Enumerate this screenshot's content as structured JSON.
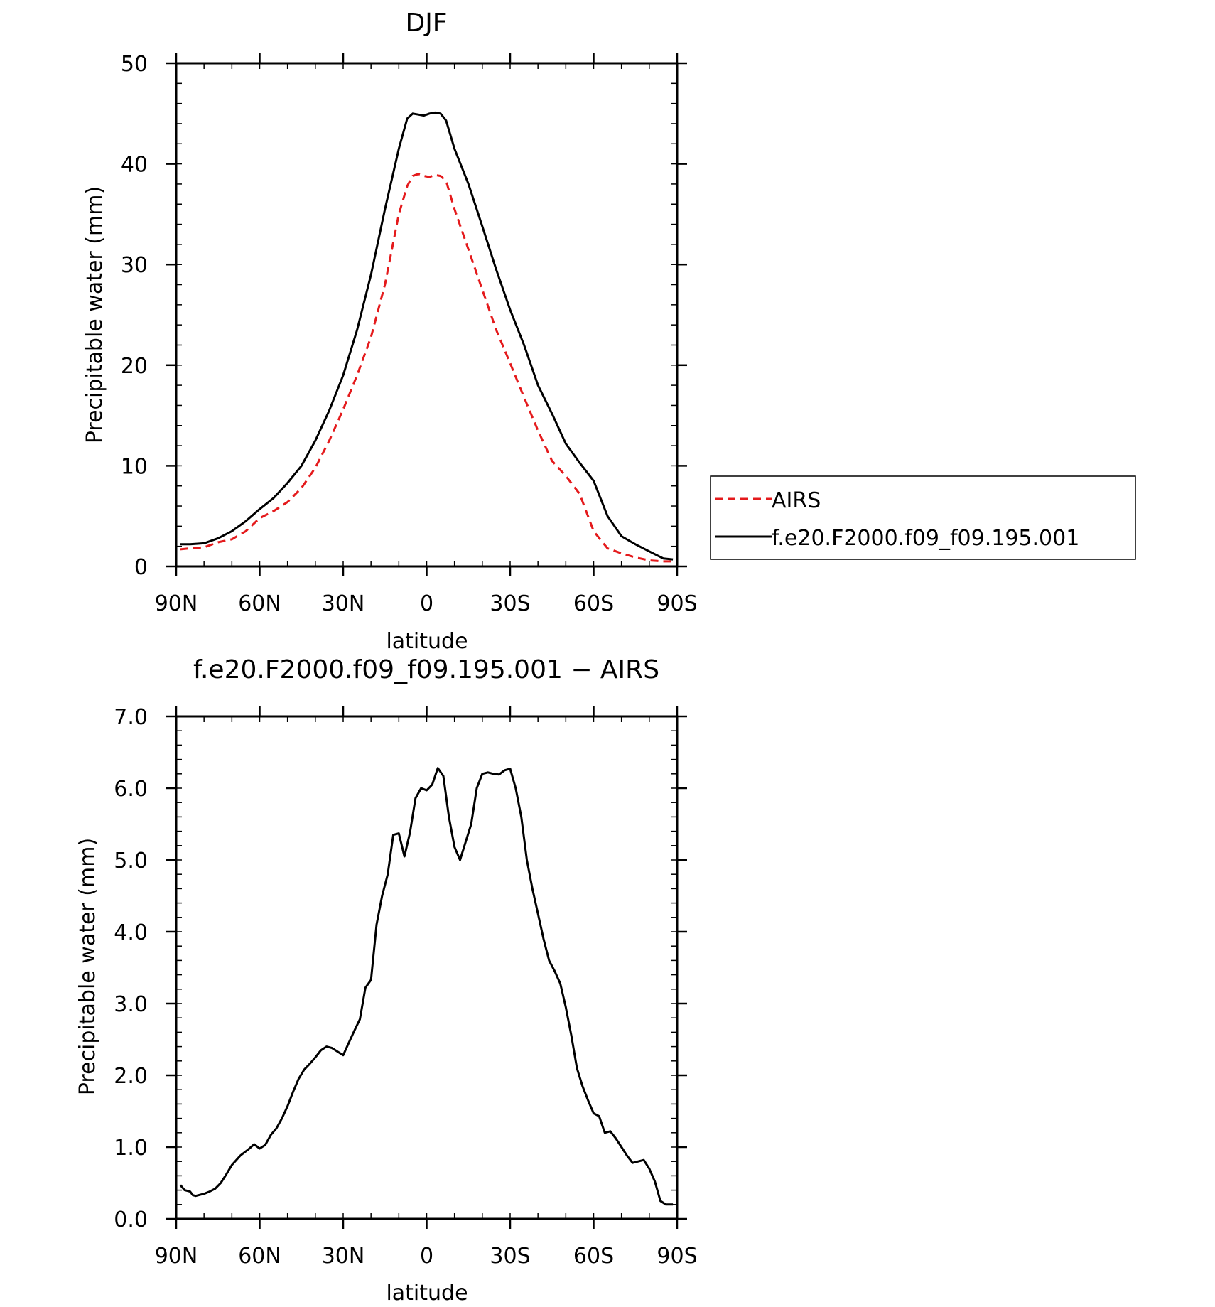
{
  "chart_data": [
    {
      "type": "line",
      "title": "DJF",
      "xlabel": "latitude",
      "ylabel": "Precipitable water (mm)",
      "xlim": [
        -90,
        90
      ],
      "ylim": [
        0,
        50
      ],
      "x_tick_values": [
        -90,
        -60,
        -30,
        0,
        30,
        60,
        90
      ],
      "x_tick_labels": [
        "90N",
        "60N",
        "30N",
        "0",
        "30S",
        "60S",
        "90S"
      ],
      "y_tick_values": [
        0,
        10,
        20,
        30,
        40,
        50
      ],
      "y_tick_labels": [
        "0",
        "10",
        "20",
        "30",
        "40",
        "50"
      ],
      "legend_position": "right",
      "series": [
        {
          "name": "AIRS",
          "color": "#e41a1c",
          "dash": "dashed",
          "x": [
            -88.5,
            -85,
            -80,
            -75,
            -70,
            -65,
            -60,
            -55,
            -50,
            -45,
            -40,
            -35,
            -30,
            -25,
            -20,
            -15,
            -10,
            -7,
            -5,
            -3,
            -1,
            1,
            3,
            5,
            7,
            10,
            15,
            20,
            25,
            30,
            35,
            40,
            45,
            50,
            55,
            60,
            65,
            70,
            75,
            80,
            85,
            88.5
          ],
          "y": [
            1.7,
            1.8,
            1.9,
            2.4,
            2.7,
            3.5,
            4.8,
            5.5,
            6.4,
            7.8,
            9.8,
            12.5,
            15.6,
            19.0,
            22.8,
            28.0,
            35.0,
            37.8,
            38.8,
            39.0,
            38.8,
            38.7,
            38.9,
            38.8,
            38.3,
            35.5,
            31.5,
            27.5,
            23.5,
            20.2,
            16.8,
            13.5,
            10.5,
            9.0,
            7.2,
            3.5,
            1.8,
            1.3,
            0.9,
            0.6,
            0.5,
            0.5
          ]
        },
        {
          "name": "f.e20.F2000.f09_f09.195.001",
          "color": "#000000",
          "dash": "solid",
          "x": [
            -88.5,
            -85,
            -80,
            -75,
            -70,
            -65,
            -60,
            -55,
            -50,
            -45,
            -40,
            -35,
            -30,
            -25,
            -20,
            -15,
            -10,
            -7,
            -5,
            -3,
            -1,
            1,
            3,
            5,
            7,
            10,
            15,
            20,
            25,
            30,
            35,
            40,
            45,
            50,
            55,
            60,
            65,
            70,
            75,
            80,
            85,
            88.5
          ],
          "y": [
            2.2,
            2.2,
            2.3,
            2.8,
            3.5,
            4.5,
            5.7,
            6.8,
            8.3,
            10.0,
            12.5,
            15.5,
            19.0,
            23.5,
            29.0,
            35.5,
            41.5,
            44.5,
            45.0,
            44.9,
            44.8,
            45.0,
            45.1,
            45.0,
            44.3,
            41.5,
            38.0,
            33.8,
            29.5,
            25.5,
            22.0,
            18.0,
            15.2,
            12.2,
            10.3,
            8.5,
            5.0,
            3.0,
            2.2,
            1.5,
            0.8,
            0.7
          ]
        }
      ]
    },
    {
      "type": "line",
      "title": "f.e20.F2000.f09_f09.195.001 − AIRS",
      "xlabel": "latitude",
      "ylabel": "Precipitable water (mm)",
      "xlim": [
        -90,
        90
      ],
      "ylim": [
        0,
        7
      ],
      "x_tick_values": [
        -90,
        -60,
        -30,
        0,
        30,
        60,
        90
      ],
      "x_tick_labels": [
        "90N",
        "60N",
        "30N",
        "0",
        "30S",
        "60S",
        "90S"
      ],
      "y_tick_values": [
        0,
        1,
        2,
        3,
        4,
        5,
        6,
        7
      ],
      "y_tick_labels": [
        "0.0",
        "1.0",
        "2.0",
        "3.0",
        "4.0",
        "5.0",
        "6.0",
        "7.0"
      ],
      "series": [
        {
          "color": "#000000",
          "dash": "solid",
          "x": [
            -88.5,
            -87,
            -85,
            -84,
            -83,
            -80,
            -78,
            -76,
            -74,
            -72,
            -70,
            -67,
            -64,
            -62,
            -60,
            -58,
            -56,
            -54,
            -52,
            -50,
            -48,
            -46,
            -44,
            -42,
            -40,
            -38,
            -36,
            -34,
            -32,
            -30,
            -28,
            -26,
            -24,
            -22,
            -20,
            -18,
            -16,
            -14,
            -12,
            -10,
            -8,
            -6,
            -4,
            -2,
            0,
            2,
            4,
            6,
            8,
            10,
            12,
            14,
            16,
            18,
            20,
            22,
            24,
            26,
            28,
            30,
            32,
            34,
            36,
            38,
            40,
            42,
            44,
            46,
            48,
            50,
            52,
            54,
            56,
            58,
            60,
            62,
            64,
            66,
            68,
            70,
            72,
            74,
            76,
            78,
            80,
            82,
            84,
            86,
            88.5
          ],
          "y": [
            0.47,
            0.4,
            0.38,
            0.33,
            0.32,
            0.35,
            0.38,
            0.42,
            0.5,
            0.62,
            0.75,
            0.88,
            0.97,
            1.04,
            0.98,
            1.03,
            1.17,
            1.26,
            1.4,
            1.57,
            1.77,
            1.95,
            2.08,
            2.16,
            2.25,
            2.35,
            2.4,
            2.38,
            2.33,
            2.28,
            2.45,
            2.62,
            2.78,
            3.22,
            3.33,
            4.1,
            4.5,
            4.8,
            5.35,
            5.37,
            5.05,
            5.38,
            5.86,
            6.0,
            5.97,
            6.05,
            6.28,
            6.17,
            5.6,
            5.18,
            5.0,
            5.25,
            5.5,
            6.0,
            6.2,
            6.22,
            6.2,
            6.19,
            6.25,
            6.27,
            6.0,
            5.6,
            5.0,
            4.6,
            4.25,
            3.9,
            3.6,
            3.45,
            3.28,
            2.95,
            2.55,
            2.1,
            1.85,
            1.65,
            1.47,
            1.43,
            1.2,
            1.22,
            1.12,
            1.0,
            0.88,
            0.78,
            0.8,
            0.82,
            0.7,
            0.52,
            0.25,
            0.2,
            0.2
          ]
        }
      ]
    }
  ]
}
